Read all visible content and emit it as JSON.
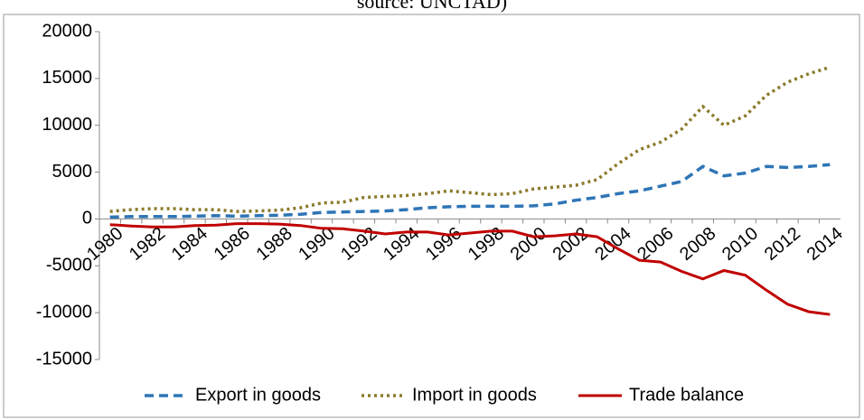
{
  "chart_data": {
    "type": "line",
    "title": "source: UNCTAD)",
    "categories": [
      "1980",
      null,
      "1982",
      null,
      "1984",
      null,
      "1986",
      null,
      "1988",
      null,
      "1990",
      null,
      "1992",
      null,
      "1994",
      null,
      "1996",
      null,
      "1998",
      null,
      "2000",
      null,
      "2002",
      null,
      "2004",
      null,
      "2006",
      null,
      "2008",
      null,
      "2010",
      null,
      "2012",
      null,
      "2014"
    ],
    "series": [
      {
        "name": "Export in goods",
        "color": "#2e75b6",
        "dash": "dashed",
        "values": [
          200,
          250,
          250,
          250,
          300,
          350,
          300,
          350,
          400,
          500,
          700,
          750,
          800,
          850,
          1000,
          1200,
          1300,
          1350,
          1350,
          1350,
          1400,
          1600,
          2000,
          2300,
          2700,
          3000,
          3500,
          4000,
          5600,
          4600,
          4900,
          5600,
          5500,
          5600,
          5800
        ]
      },
      {
        "name": "Import in goods",
        "color": "#8b7a2b",
        "dash": "dotted",
        "values": [
          800,
          1000,
          1100,
          1100,
          1000,
          1000,
          800,
          850,
          950,
          1200,
          1700,
          1800,
          2300,
          2400,
          2500,
          2700,
          3000,
          2800,
          2600,
          2700,
          3200,
          3400,
          3600,
          4200,
          5900,
          7400,
          8200,
          9600,
          12000,
          10000,
          11000,
          13200,
          14600,
          15500,
          16200
        ]
      },
      {
        "name": "Trade balance",
        "color": "#c00000",
        "dash": "solid",
        "values": [
          -600,
          -750,
          -850,
          -850,
          -700,
          -650,
          -500,
          -500,
          -550,
          -700,
          -1000,
          -1050,
          -1300,
          -1600,
          -1400,
          -1400,
          -1700,
          -1500,
          -1300,
          -1300,
          -1900,
          -1800,
          -1600,
          -1900,
          -3200,
          -4400,
          -4600,
          -5600,
          -6400,
          -5500,
          -6000,
          -7600,
          -9100,
          -9900,
          -10200
        ]
      }
    ],
    "ylim": [
      -15000,
      20000
    ],
    "yticks": [
      -15000,
      -10000,
      -5000,
      0,
      5000,
      10000,
      15000,
      20000
    ],
    "grid": false,
    "legend": "bottom"
  }
}
